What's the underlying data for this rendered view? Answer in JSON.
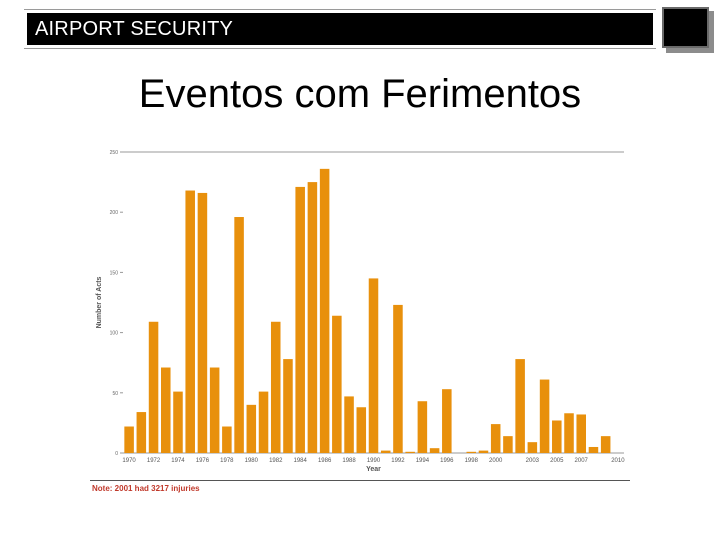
{
  "header": {
    "title": "AIRPORT SECURITY"
  },
  "slide": {
    "title": "Eventos com Ferimentos"
  },
  "colors": {
    "bar": "#E8900C",
    "header_bg": "#000000",
    "note": "#C0392B"
  },
  "chart_data": {
    "type": "bar",
    "title": "",
    "xlabel": "Year",
    "ylabel": "Number of Acts",
    "ylim": [
      0,
      250
    ],
    "yticks": [
      0,
      50,
      100,
      150,
      200,
      250
    ],
    "grid": false,
    "categories": [
      1970,
      1971,
      1972,
      1973,
      1974,
      1975,
      1976,
      1977,
      1978,
      1979,
      1980,
      1981,
      1982,
      1983,
      1984,
      1985,
      1986,
      1987,
      1988,
      1989,
      1990,
      1991,
      1992,
      1993,
      1994,
      1995,
      1996,
      1997,
      1998,
      1999,
      2000,
      2001,
      2002,
      2003,
      2004,
      2005,
      2006,
      2007,
      2008,
      2009,
      2010
    ],
    "xtick_labels": [
      "1970",
      "1972",
      "1974",
      "1976",
      "1978",
      "1980",
      "1982",
      "1984",
      "1986",
      "1988",
      "1990",
      "1992",
      "1994",
      "1996",
      "1998",
      "2000",
      "2003",
      "2005",
      "2007",
      "2010"
    ],
    "values": [
      22,
      34,
      109,
      71,
      51,
      218,
      216,
      71,
      22,
      196,
      40,
      51,
      109,
      78,
      221,
      225,
      236,
      114,
      47,
      38,
      145,
      2,
      123,
      1,
      43,
      4,
      53,
      0,
      1,
      2,
      24,
      14,
      78,
      9,
      61,
      27,
      33,
      32,
      5,
      14,
      null
    ],
    "note": "Note: 2001 had 3217 injuries"
  }
}
